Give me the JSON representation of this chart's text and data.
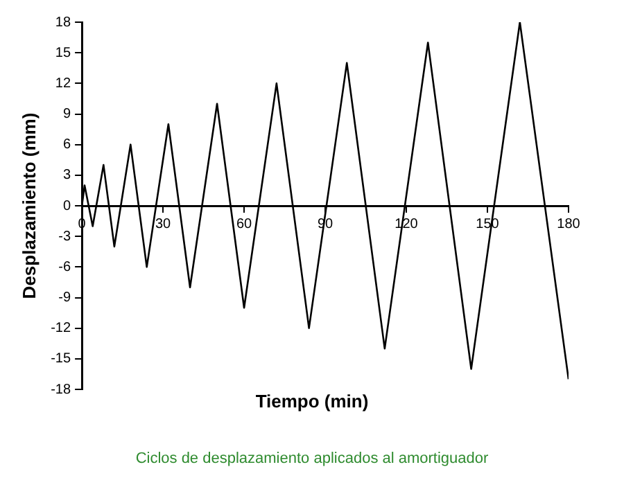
{
  "chart_data": {
    "type": "line",
    "xlabel": "Tiempo (min)",
    "ylabel": "Desplazamiento (mm)",
    "annotations": [
      "Ciclos de desplazamiento aplicados al amortiguador"
    ],
    "series": [
      {
        "color": "#000000",
        "x": [
          0,
          1,
          4,
          8,
          12,
          18,
          24,
          32,
          40,
          50,
          60,
          72,
          84,
          98,
          112,
          128,
          144,
          162,
          180
        ],
        "values": [
          0,
          2,
          -2,
          4,
          -4,
          6,
          -6,
          8,
          -8,
          10,
          -10,
          12,
          -12,
          14,
          -14,
          16,
          -16,
          18,
          -17
        ]
      }
    ],
    "xlim": [
      0,
      180
    ],
    "xticks": [
      0,
      30,
      60,
      90,
      120,
      150,
      180
    ],
    "ylim": [
      -18,
      18
    ],
    "yticks": [
      -18,
      -15,
      -12,
      -9,
      -6,
      -3,
      0,
      3,
      6,
      9,
      12,
      15,
      18
    ],
    "grid": false,
    "legend": false,
    "marker": "none",
    "line_style": "solid"
  }
}
